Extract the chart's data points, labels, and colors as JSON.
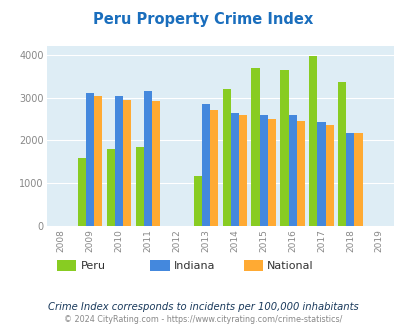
{
  "title": "Peru Property Crime Index",
  "title_color": "#1a6ebd",
  "subtitle": "Crime Index corresponds to incidents per 100,000 inhabitants",
  "footer": "© 2024 CityRating.com - https://www.cityrating.com/crime-statistics/",
  "years": [
    2009,
    2010,
    2011,
    2013,
    2014,
    2015,
    2016,
    2017,
    2018
  ],
  "peru": [
    1600,
    1800,
    1850,
    1180,
    3200,
    3700,
    3650,
    3980,
    3360
  ],
  "indiana": [
    3110,
    3040,
    3160,
    2860,
    2650,
    2600,
    2600,
    2430,
    2165
  ],
  "national": [
    3040,
    2950,
    2920,
    2720,
    2600,
    2500,
    2450,
    2370,
    2175
  ],
  "peru_color": "#88cc22",
  "indiana_color": "#4488dd",
  "national_color": "#ffaa33",
  "bg_color": "#ffffff",
  "plot_bg_color": "#deedf5",
  "ylim": [
    0,
    4200
  ],
  "yticks": [
    0,
    1000,
    2000,
    3000,
    4000
  ],
  "xlim_min": 2007.5,
  "xlim_max": 2019.5,
  "xticks": [
    2008,
    2009,
    2010,
    2011,
    2012,
    2013,
    2014,
    2015,
    2016,
    2017,
    2018,
    2019
  ],
  "bar_width": 0.28,
  "legend_labels": [
    "Peru",
    "Indiana",
    "National"
  ],
  "grid_color": "#ffffff",
  "tick_label_color": "#888888",
  "subtitle_color": "#1a3a5c",
  "footer_color": "#888888",
  "footer_link_color": "#4488dd"
}
